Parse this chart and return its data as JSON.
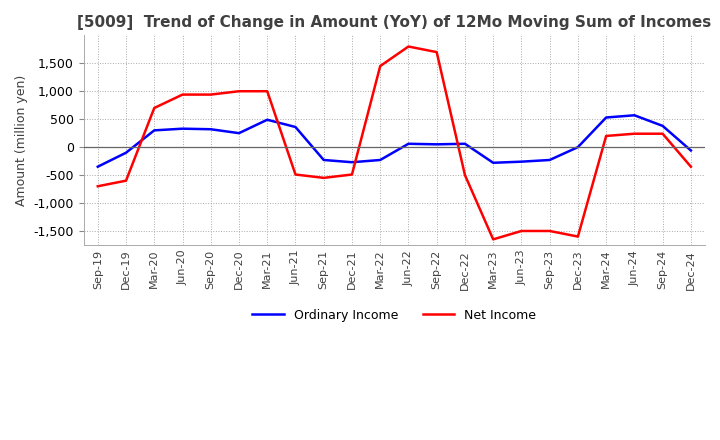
{
  "title": "[5009]  Trend of Change in Amount (YoY) of 12Mo Moving Sum of Incomes",
  "ylabel": "Amount (million yen)",
  "x_labels": [
    "Sep-19",
    "Dec-19",
    "Mar-20",
    "Jun-20",
    "Sep-20",
    "Dec-20",
    "Mar-21",
    "Jun-21",
    "Sep-21",
    "Dec-21",
    "Mar-22",
    "Jun-22",
    "Sep-22",
    "Dec-22",
    "Mar-23",
    "Jun-23",
    "Sep-23",
    "Dec-23",
    "Mar-24",
    "Jun-24",
    "Sep-24",
    "Dec-24"
  ],
  "ordinary_income": [
    -350,
    -100,
    300,
    330,
    320,
    250,
    490,
    360,
    -230,
    -270,
    -230,
    60,
    50,
    60,
    -280,
    -260,
    -230,
    0,
    530,
    570,
    380,
    -60
  ],
  "net_income": [
    -700,
    -600,
    700,
    940,
    940,
    1000,
    1000,
    -490,
    -550,
    -490,
    1450,
    1800,
    1700,
    -500,
    -1650,
    -1500,
    -1500,
    -1600,
    200,
    240,
    240,
    -350
  ],
  "ordinary_color": "#0000ff",
  "net_color": "#ff0000",
  "ylim": [
    -1750,
    2000
  ],
  "yticks": [
    -1500,
    -1000,
    -500,
    0,
    500,
    1000,
    1500
  ],
  "bg_color": "#ffffff",
  "grid_color": "#aaaaaa",
  "title_color": "#404040",
  "line_width": 1.8
}
